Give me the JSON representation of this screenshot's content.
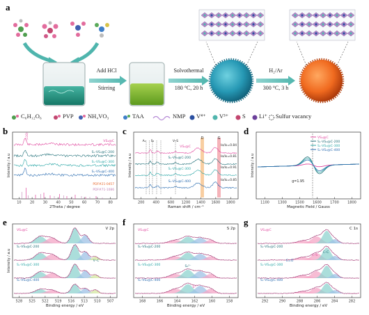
{
  "panels": {
    "a": {
      "letter": "a",
      "step1": {
        "top": "Add HCl",
        "bottom": "Stirring"
      },
      "step2": {
        "top": "Solvothermal",
        "bottom": "180 °C, 20 h"
      },
      "step3": {
        "top": "H₂/Ar",
        "bottom": "300 °C, 3 h"
      },
      "legend": {
        "c6": "C₆H₁₂O₆",
        "pvp": "PVP",
        "nh4": "NH₄VO₃",
        "taa": "TAA",
        "nmp": "NMP",
        "v4": "V⁴⁺",
        "v3": "V³⁺",
        "s": "S",
        "li": "Li⁺",
        "vac": "Sulfur vacancy"
      }
    },
    "b": {
      "letter": "b",
      "series": [
        "VS₄@C",
        "Sᵥ-VS₄@C-200",
        "Sᵥ-VS₄@C-300",
        "Sᵥ-VS₄@C-400"
      ],
      "pdf1": "PDF#21-0457",
      "pdf2": "PDF#71-1086",
      "peak": "(110)",
      "xlabel": "2Theta / degree",
      "ylabel": "Intensity / a.u",
      "xticks": [
        "10",
        "20",
        "30",
        "40",
        "50",
        "60",
        "70",
        "80"
      ]
    },
    "c": {
      "letter": "c",
      "series": [
        "VS₄@C",
        "Sᵥ-VS₄@C-200",
        "Sᵥ-VS₄@C-300",
        "Sᵥ-VS₄@C-400"
      ],
      "ratios": [
        "Iᴅ/Iɢ=0.84",
        "Iᴅ/Iɢ=0.81",
        "Iᴅ/Iɢ=0.91",
        "Iᴅ/Iɢ=0.85"
      ],
      "bands": [
        "A₁",
        "S₂",
        "V–S"
      ],
      "peakD": "D",
      "peakG": "G",
      "xlabel": "Raman shift / cm⁻¹",
      "ylabel": "Intensity / a.u",
      "xticks": [
        "200",
        "400",
        "600",
        "1200",
        "1400",
        "1600",
        "1800"
      ]
    },
    "d": {
      "letter": "d",
      "series": [
        "VS₄@C",
        "Sᵥ-VS₄@C-200",
        "Sᵥ-VS₄@C-300",
        "Sᵥ-VS₄@C-400"
      ],
      "gvalue": "g=1.95",
      "xlabel": "Magnetic Field / Gauss",
      "ylabel": "Intensity / a.u",
      "xticks": [
        "1100",
        "1300",
        "1500",
        "1600",
        "1700",
        "1800"
      ]
    },
    "e": {
      "letter": "e",
      "title": "V 2p",
      "series": [
        "VS₄@C",
        "Sᵥ-VS₄@C-200",
        "Sᵥ-VS₄@C-300",
        "Sᵥ-VS₄@C-400"
      ],
      "peak": "V–C",
      "xlabel": "Binding energy / eV",
      "ylabel": "Intensity / a.u",
      "xticks": [
        "528",
        "525",
        "522",
        "519",
        "516",
        "513",
        "510",
        "507"
      ]
    },
    "f": {
      "letter": "f",
      "title": "S 2p",
      "series": [
        "VS₄@C",
        "Sᵥ-VS₄@C-200",
        "Sᵥ-VS₄@C-300",
        "Sᵥ-VS₄@C-400"
      ],
      "peak1": "S₂²⁻",
      "peak2": "S²⁻",
      "xlabel": "Binding energy / eV",
      "xticks": [
        "168",
        "166",
        "164",
        "162",
        "160",
        "158"
      ]
    },
    "g": {
      "letter": "g",
      "title": "C 1s",
      "series": [
        "VS₄@C",
        "Sᵥ-VS₄@C-200",
        "Sᵥ-VS₄@C-300",
        "Sᵥ-VS₄@C-400"
      ],
      "peak1": "C=O",
      "peak2": "C–C",
      "peak3": "C–S",
      "xlabel": "Binding energy / eV",
      "xticks": [
        "292",
        "290",
        "288",
        "286",
        "284",
        "282"
      ]
    }
  },
  "colors": {
    "pink": "#e0479e",
    "teal": "#2aa6a6",
    "darkteal": "#1f6f78",
    "blue": "#2a6cb0",
    "orange": "#e8672a",
    "green": "#7fb53a",
    "fillTeal": "#8fd3cf",
    "fillPink": "#f4a6c6",
    "fillBlue": "#9fc1e6",
    "fillGreen": "#d5e8a0"
  }
}
